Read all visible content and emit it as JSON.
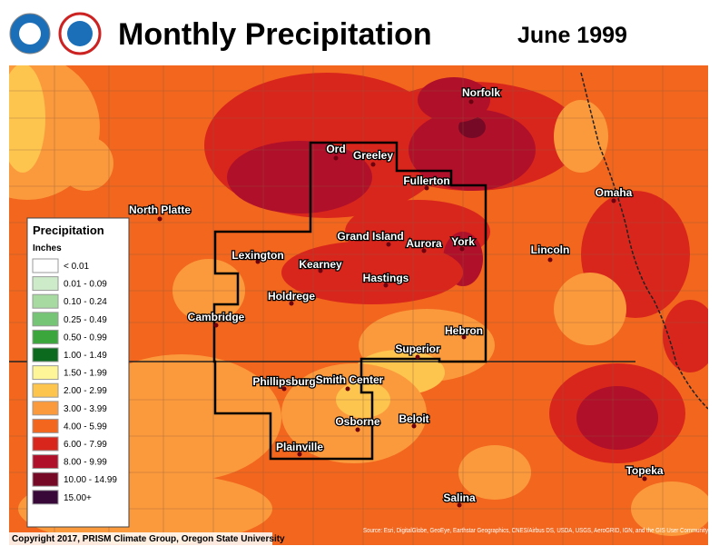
{
  "header": {
    "title": "Monthly Precipitation",
    "date": "June 1999"
  },
  "legend": {
    "title": "Precipitation",
    "unit": "Inches",
    "items": [
      {
        "label": "< 0.01",
        "color": "#ffffff"
      },
      {
        "label": "0.01 - 0.09",
        "color": "#cdebc8"
      },
      {
        "label": "0.10 - 0.24",
        "color": "#a6daa0"
      },
      {
        "label": "0.25 - 0.49",
        "color": "#76c476"
      },
      {
        "label": "0.50 - 0.99",
        "color": "#3aa63c"
      },
      {
        "label": "1.00 - 1.49",
        "color": "#0b6a1e"
      },
      {
        "label": "1.50 - 1.99",
        "color": "#fdf597"
      },
      {
        "label": "2.00 - 2.99",
        "color": "#fdc44e"
      },
      {
        "label": "3.00 - 3.99",
        "color": "#fb9a3c"
      },
      {
        "label": "4.00 - 5.99",
        "color": "#f2661e"
      },
      {
        "label": "6.00 - 7.99",
        "color": "#d9261c"
      },
      {
        "label": "8.00 - 9.99",
        "color": "#b0102a"
      },
      {
        "label": "10.00 - 14.99",
        "color": "#760a26"
      },
      {
        "label": "15.00+",
        "color": "#380838"
      }
    ]
  },
  "cities": [
    "Norfolk",
    "Ord",
    "Greeley",
    "Fullerton",
    "Omaha",
    "North Platte",
    "Grand Island",
    "Aurora",
    "York",
    "Lincoln",
    "Lexington",
    "Kearney",
    "Hastings",
    "Holdrege",
    "Cambridge",
    "Hebron",
    "Superior",
    "Phillipsburg",
    "Smith Center",
    "Beloit",
    "Osborne",
    "Plainville",
    "Topeka",
    "Salina"
  ],
  "footer": {
    "copyright": "Copyright 2017, PRISM Climate Group, Oregon State University",
    "source": "Source: Esri, DigitalGlobe, GeoEye, Earthstar Geographics, CNES/Airbus DS, USDA, USGS, AeroGRID, IGN, and the GIS User Community"
  }
}
